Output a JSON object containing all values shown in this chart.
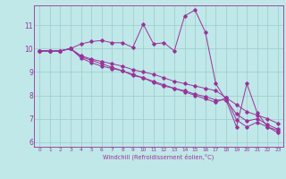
{
  "xlabel": "Windchill (Refroidissement éolien,°C)",
  "xlim": [
    -0.5,
    23.5
  ],
  "ylim": [
    5.8,
    11.85
  ],
  "yticks": [
    6,
    7,
    8,
    9,
    10,
    11
  ],
  "xticks": [
    0,
    1,
    2,
    3,
    4,
    5,
    6,
    7,
    8,
    9,
    10,
    11,
    12,
    13,
    14,
    15,
    16,
    17,
    18,
    19,
    20,
    21,
    22,
    23
  ],
  "bg_color": "#c0e8e8",
  "line_color": "#993399",
  "grid_color": "#99cccc",
  "series1_y": [
    9.9,
    9.9,
    9.9,
    10.0,
    10.2,
    10.3,
    10.35,
    10.25,
    10.25,
    10.05,
    11.05,
    10.2,
    10.25,
    9.9,
    11.4,
    11.65,
    10.7,
    8.5,
    7.8,
    6.65,
    8.5,
    7.25,
    6.65,
    6.4
  ],
  "series2_y": [
    9.9,
    9.9,
    9.9,
    10.0,
    9.7,
    9.55,
    9.45,
    9.35,
    9.25,
    9.1,
    9.0,
    8.9,
    8.75,
    8.6,
    8.5,
    8.4,
    8.3,
    8.2,
    7.9,
    7.6,
    7.3,
    7.15,
    7.0,
    6.8
  ],
  "series3_y": [
    9.9,
    9.9,
    9.9,
    10.0,
    9.65,
    9.5,
    9.35,
    9.2,
    9.05,
    8.9,
    8.75,
    8.6,
    8.45,
    8.3,
    8.15,
    8.0,
    7.85,
    7.7,
    7.9,
    6.95,
    6.65,
    6.85,
    6.65,
    6.5
  ],
  "series4_y": [
    9.9,
    9.9,
    9.9,
    10.0,
    9.6,
    9.4,
    9.25,
    9.15,
    9.05,
    8.85,
    8.75,
    8.55,
    8.4,
    8.3,
    8.2,
    8.05,
    7.95,
    7.8,
    7.8,
    7.2,
    6.9,
    7.0,
    6.75,
    6.55
  ]
}
